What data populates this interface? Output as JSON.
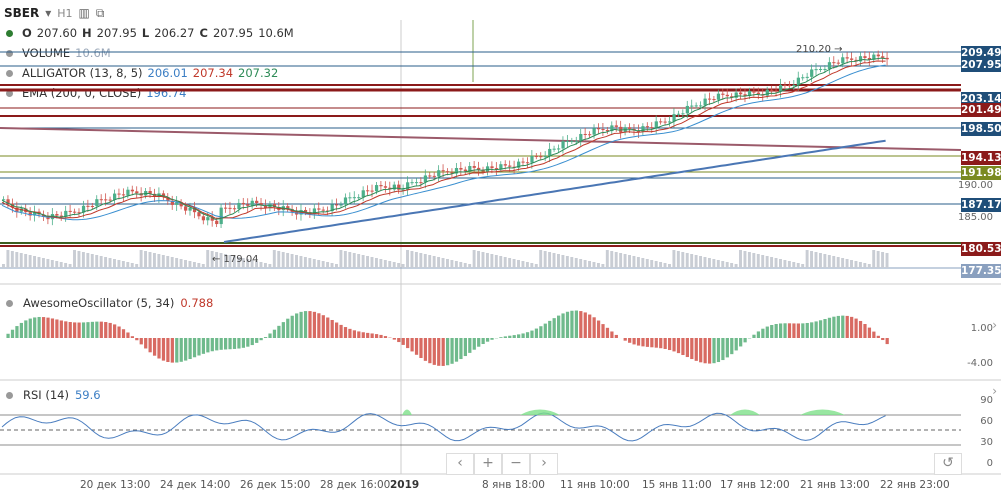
{
  "header": {
    "symbol": "SBER",
    "timeframe": "H1",
    "icons": [
      "bar-chart-icon",
      "compare-icon"
    ]
  },
  "ohlc": {
    "o_label": "O",
    "o": "207.60",
    "h_label": "H",
    "h": "207.95",
    "l_label": "L",
    "l": "206.27",
    "c_label": "C",
    "c": "207.95",
    "vol": "10.6M"
  },
  "legend": {
    "volume_label": "VOLUME",
    "volume_value": "10.6M",
    "alligator_label": "ALLIGATOR (13, 8, 5)",
    "alligator_jaw": "206.01",
    "alligator_teeth": "207.34",
    "alligator_lips": "207.32",
    "ema_label": "EMA (200, 0, CLOSE)",
    "ema_value": "196.74"
  },
  "annotations": {
    "high_marker": "210.20 →",
    "low_marker": "← 179.04"
  },
  "price_axis": {
    "tags": [
      {
        "text": "209.49",
        "color": "#1f4e79"
      },
      {
        "text": "207.95",
        "color": "#1f4e79"
      },
      {
        "text": "203.14",
        "color": "#1f4e79"
      },
      {
        "text": "201.49",
        "color": "#8b1a1a"
      },
      {
        "text": "198.50",
        "color": "#1f4e79"
      },
      {
        "text": "194.13",
        "color": "#8b1a1a"
      },
      {
        "text": "191.98",
        "color": "#7a8a20"
      },
      {
        "text": "187.17",
        "color": "#1f4e79"
      },
      {
        "text": "180.53",
        "color": "#8b1a1a"
      },
      {
        "text": "177.35",
        "color": "#8aa0bf"
      }
    ],
    "plain": [
      "190.00",
      "185.00"
    ]
  },
  "ao": {
    "label": "AwesomeOscillator (5, 34)",
    "value": "0.788",
    "axis": [
      "1.00",
      "-4.00"
    ]
  },
  "rsi": {
    "label": "RSI (14)",
    "value": "59.6",
    "axis": [
      "90",
      "60",
      "30",
      "0"
    ]
  },
  "x_axis": [
    "20 дек 13:00",
    "24 дек 14:00",
    "26 дек 15:00",
    "28 дек 16:00",
    "2019",
    "8 янв 18:00",
    "11 янв 10:00",
    "15 янв 11:00",
    "17 янв 12:00",
    "21 янв 13:00",
    "22 янв 23:00"
  ],
  "nav": {
    "prev": "‹",
    "zoom_in": "+",
    "zoom_out": "−",
    "next": "›",
    "reset": "↺"
  },
  "colors": {
    "bull": "#4caf8a",
    "bear": "#d0564f",
    "ao_up": "#6fba8c",
    "ao_down": "#d86a62",
    "rsi": "#4a7dbf",
    "ema": "#4a76b4",
    "jaw": "#3a8fd0",
    "teeth": "#c0392b",
    "lips": "#2e8b57"
  }
}
